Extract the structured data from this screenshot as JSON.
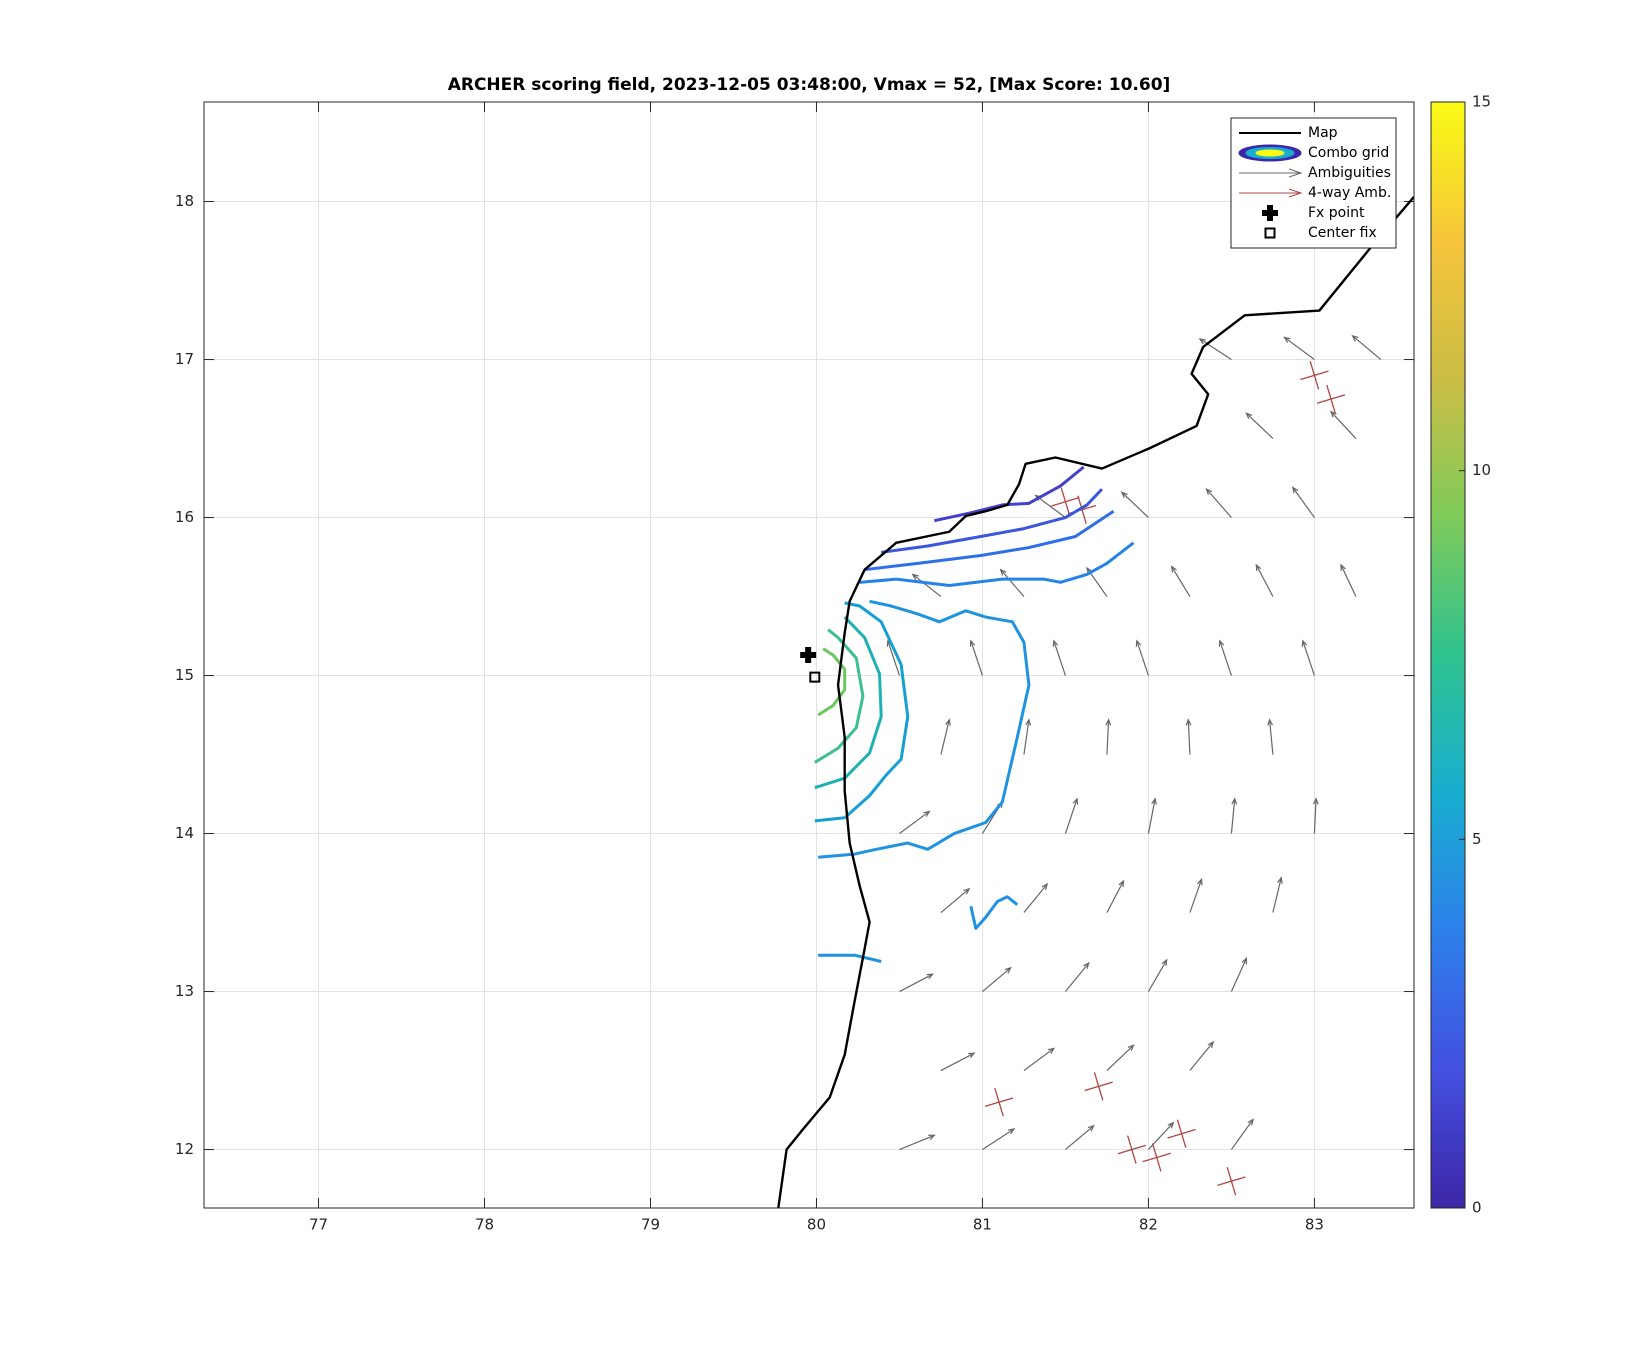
{
  "chart_data": {
    "type": "map",
    "title": "ARCHER scoring field, 2023-12-05 03:48:00, Vmax = 52, [Max Score: 10.60]",
    "xlim": [
      76.31,
      83.6
    ],
    "ylim": [
      11.63,
      18.63
    ],
    "xticks": [
      77,
      78,
      79,
      80,
      81,
      82,
      83
    ],
    "yticks": [
      12,
      13,
      14,
      15,
      16,
      17,
      18
    ],
    "grid": true,
    "legend_location": "northeast",
    "legend": [
      "Map",
      "Combo grid",
      "Ambiguities",
      "4-way Amb.",
      "Fx point",
      "Center fix"
    ],
    "colorbar": {
      "clim": [
        0,
        15
      ],
      "ticks": [
        0,
        5,
        10,
        15
      ],
      "colormap": [
        "#3e26a8",
        "#4350e0",
        "#2d80eb",
        "#18aed0",
        "#2fc28f",
        "#7fcb5a",
        "#cbbd45",
        "#f6c53a",
        "#f9fb15"
      ]
    },
    "map": {
      "color": "#000000",
      "x": [
        79.77,
        79.82,
        79.92,
        80.08,
        80.17,
        80.23,
        80.29,
        80.32,
        80.26,
        80.2,
        80.17,
        80.17,
        80.13,
        80.17,
        80.2,
        80.29,
        80.48,
        80.8,
        80.9,
        81.02,
        81.15,
        81.22,
        81.26,
        81.44,
        81.72,
        82.01,
        82.29,
        82.36,
        82.26,
        82.33,
        82.58,
        83.03,
        83.34,
        83.6
      ],
      "y": [
        11.63,
        12.0,
        12.13,
        12.33,
        12.6,
        12.94,
        13.27,
        13.44,
        13.67,
        13.94,
        14.27,
        14.61,
        14.94,
        15.27,
        15.47,
        15.67,
        15.84,
        15.91,
        16.01,
        16.04,
        16.08,
        16.21,
        16.34,
        16.38,
        16.31,
        16.44,
        16.58,
        16.78,
        16.91,
        17.08,
        17.28,
        17.31,
        17.71,
        18.03
      ]
    },
    "contours": [
      {
        "color": "#6cc85e",
        "x": [
          80.01,
          80.1,
          80.17,
          80.17,
          80.1,
          80.04
        ],
        "y": [
          14.75,
          14.81,
          14.91,
          15.04,
          15.13,
          15.17
        ]
      },
      {
        "color": "#3dbf8f",
        "x": [
          79.99,
          80.13,
          80.24,
          80.28,
          80.24,
          80.13,
          80.07
        ],
        "y": [
          14.45,
          14.54,
          14.67,
          14.87,
          15.11,
          15.24,
          15.29
        ]
      },
      {
        "color": "#1fb0b3",
        "x": [
          79.99,
          80.17,
          80.32,
          80.39,
          80.38,
          80.29,
          80.17
        ],
        "y": [
          14.29,
          14.35,
          14.51,
          14.74,
          15.01,
          15.24,
          15.37
        ]
      },
      {
        "color": "#16a0d2",
        "x": [
          79.99,
          80.17,
          80.32,
          80.42,
          80.51,
          80.55,
          80.51,
          80.39,
          80.26,
          80.17
        ],
        "y": [
          14.08,
          14.1,
          14.24,
          14.37,
          14.47,
          14.74,
          15.07,
          15.34,
          15.44,
          15.46
        ]
      },
      {
        "color": "#1f92e0",
        "x": [
          80.01,
          80.23,
          80.36,
          80.55,
          80.67,
          80.83,
          81.02,
          81.12,
          81.21,
          81.28,
          81.25,
          81.18,
          81.02,
          80.9,
          80.74,
          80.61,
          80.45,
          80.32
        ],
        "y": [
          13.85,
          13.87,
          13.9,
          13.94,
          13.9,
          14.0,
          14.07,
          14.2,
          14.61,
          14.94,
          15.21,
          15.34,
          15.37,
          15.41,
          15.34,
          15.39,
          15.44,
          15.47
        ]
      },
      {
        "color": "#2583e6",
        "x": [
          80.26,
          80.48,
          80.8,
          81.12,
          81.37,
          81.47,
          81.63,
          81.75,
          81.91
        ],
        "y": [
          15.59,
          15.61,
          15.57,
          15.61,
          15.61,
          15.59,
          15.64,
          15.71,
          15.84
        ]
      },
      {
        "color": "#2e6ee8",
        "x": [
          80.29,
          80.61,
          80.99,
          81.28,
          81.56,
          81.79
        ],
        "y": [
          15.67,
          15.71,
          15.76,
          15.81,
          15.88,
          16.04
        ]
      },
      {
        "color": "#3a56dc",
        "x": [
          80.39,
          80.67,
          80.99,
          81.25,
          81.5,
          81.63,
          81.72
        ],
        "y": [
          15.78,
          15.82,
          15.88,
          15.93,
          16.0,
          16.08,
          16.18
        ]
      },
      {
        "color": "#4440c8",
        "x": [
          80.71,
          80.93,
          81.12,
          81.28,
          81.47,
          81.61
        ],
        "y": [
          15.98,
          16.03,
          16.08,
          16.09,
          16.2,
          16.32
        ]
      },
      {
        "color": "#1f92e0",
        "x": [
          80.01,
          80.23,
          80.39
        ],
        "y": [
          13.23,
          13.23,
          13.19
        ]
      },
      {
        "color": "#1f92e0",
        "x": [
          80.93,
          80.96,
          81.02,
          81.09,
          81.15,
          81.21
        ],
        "y": [
          13.54,
          13.4,
          13.47,
          13.57,
          13.6,
          13.55
        ]
      }
    ],
    "ambiguities": {
      "color": "#666666",
      "x": [
        80.5,
        81.0,
        81.5,
        82.0,
        82.5,
        80.75,
        81.25,
        81.75,
        82.25,
        80.5,
        81.0,
        81.5,
        82.0,
        82.5,
        80.75,
        81.25,
        81.75,
        82.25,
        82.75,
        80.5,
        81.0,
        81.5,
        82.0,
        82.5,
        83.0,
        80.75,
        81.25,
        81.75,
        82.25,
        82.75,
        80.5,
        81.0,
        81.5,
        82.0,
        82.5,
        83.0,
        80.75,
        81.25,
        81.75,
        82.25,
        82.75,
        83.25,
        81.5,
        82.0,
        82.5,
        83.0,
        82.75,
        83.25,
        82.5,
        83.0,
        83.4
      ],
      "y": [
        12,
        12,
        12,
        12,
        12,
        12.5,
        12.5,
        12.5,
        12.5,
        13,
        13,
        13,
        13,
        13,
        13.5,
        13.5,
        13.5,
        13.5,
        13.5,
        14,
        14,
        14,
        14,
        14,
        14,
        14.5,
        14.5,
        14.5,
        14.5,
        14.5,
        15,
        15,
        15,
        15,
        15,
        15,
        15.5,
        15.5,
        15.5,
        15.5,
        15.5,
        15.5,
        16,
        16,
        16,
        16,
        16.5,
        16.5,
        17,
        17,
        17
      ],
      "u": [
        0.21,
        0.19,
        0.17,
        0.15,
        0.13,
        0.2,
        0.18,
        0.16,
        0.14,
        0.2,
        0.17,
        0.14,
        0.11,
        0.09,
        0.17,
        0.14,
        0.1,
        0.07,
        0.05,
        0.18,
        0.12,
        0.07,
        0.04,
        0.02,
        0.01,
        0.05,
        0.03,
        0.01,
        -0.01,
        -0.02,
        -0.07,
        -0.07,
        -0.07,
        -0.07,
        -0.07,
        -0.07,
        -0.17,
        -0.14,
        -0.12,
        -0.11,
        -0.1,
        -0.09,
        -0.18,
        -0.16,
        -0.15,
        -0.13,
        -0.16,
        -0.15,
        -0.19,
        -0.18,
        -0.17
      ],
      "v": [
        0.09,
        0.13,
        0.15,
        0.17,
        0.19,
        0.11,
        0.14,
        0.16,
        0.18,
        0.11,
        0.15,
        0.18,
        0.2,
        0.21,
        0.15,
        0.18,
        0.2,
        0.21,
        0.22,
        0.14,
        0.2,
        0.22,
        0.22,
        0.22,
        0.22,
        0.22,
        0.22,
        0.22,
        0.22,
        0.22,
        0.22,
        0.22,
        0.22,
        0.22,
        0.22,
        0.22,
        0.14,
        0.17,
        0.18,
        0.19,
        0.2,
        0.2,
        0.14,
        0.16,
        0.18,
        0.19,
        0.16,
        0.17,
        0.13,
        0.14,
        0.15
      ]
    },
    "four_way": {
      "color": "#b04545",
      "x": [
        81.5,
        81.6,
        83.0,
        83.1,
        81.1,
        81.7,
        81.9,
        82.2,
        82.5,
        82.05
      ],
      "y": [
        16.1,
        16.05,
        16.9,
        16.75,
        12.3,
        12.4,
        12.0,
        12.1,
        11.8,
        11.95
      ]
    },
    "fx_point": {
      "x": 79.95,
      "y": 15.13
    },
    "center_fix": {
      "x": 79.99,
      "y": 14.99
    }
  }
}
